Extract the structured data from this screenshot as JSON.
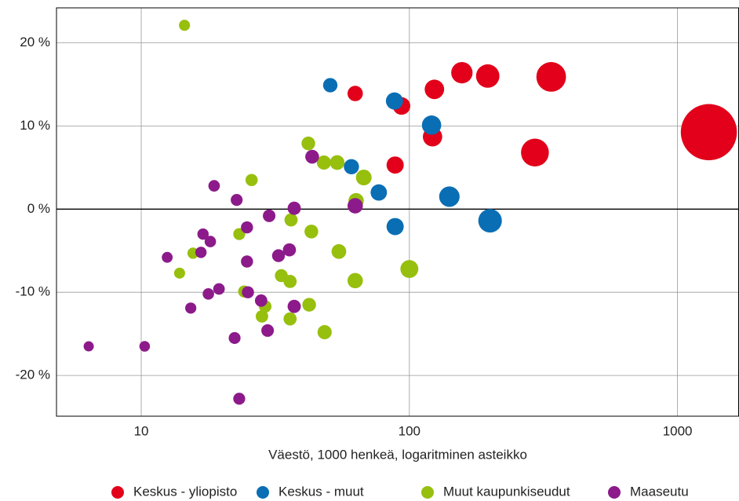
{
  "chart_data": {
    "type": "scatter",
    "x_label": "Väestö, 1000 henkeä, logaritminen asteikko",
    "xscale": "log",
    "grid": true,
    "legend": "bottom",
    "xlim": [
      4.83,
      1690
    ],
    "xticks": [
      10,
      100,
      1000
    ],
    "ylim": [
      -24.9,
      24.2
    ],
    "yticks": [
      {
        "value": -20,
        "label": "-20 %"
      },
      {
        "value": -10,
        "label": "-10 %"
      },
      {
        "value": 0,
        "label": "0 %"
      },
      {
        "value": 10,
        "label": "10 %"
      },
      {
        "value": 20,
        "label": "20 %"
      }
    ],
    "series": [
      {
        "name": "Keskus - yliopisto",
        "color": "#e2001a",
        "x": [
          1309,
          338,
          196,
          157,
          124,
          93.5,
          62.8,
          122,
          88.5,
          294
        ],
        "values": [
          9.25,
          15.9,
          16.0,
          16.4,
          14.4,
          12.4,
          13.9,
          8.7,
          5.3,
          6.8
        ]
      },
      {
        "name": "Keskus - muut",
        "color": "#0a6eb4",
        "x": [
          50.7,
          88,
          121,
          60.8,
          76.9,
          141,
          88.5,
          200
        ],
        "values": [
          14.9,
          13.0,
          10.1,
          5.1,
          2.0,
          1.5,
          -2.1,
          -1.4
        ]
      },
      {
        "name": "Muut kaupunkiseudut",
        "color": "#97bf0d",
        "x": [
          14.5,
          42,
          48,
          53.8,
          25.8,
          67.6,
          63.3,
          36.2,
          43.1,
          23.2,
          15.6,
          54.6,
          13.9,
          33.3,
          35.9,
          62.8,
          100,
          24.2,
          29,
          28.2,
          42.3,
          35.9,
          48.3
        ],
        "values": [
          22.1,
          7.9,
          5.6,
          5.6,
          3.5,
          3.8,
          1.0,
          -1.3,
          -2.7,
          -3.0,
          -5.3,
          -5.1,
          -7.7,
          -8.0,
          -8.7,
          -8.6,
          -7.2,
          -9.9,
          -11.7,
          -12.9,
          -11.5,
          -13.2,
          -14.8
        ]
      },
      {
        "name": "Maaseutu",
        "color": "#8c1a8a",
        "x": [
          43.4,
          18.7,
          22.7,
          37.2,
          62.8,
          30,
          24.8,
          17,
          18.1,
          16.7,
          12.5,
          24.8,
          32.5,
          35.7,
          19.5,
          17.8,
          25,
          28,
          37.2,
          15.3,
          29.6,
          22.3,
          6.37,
          10.3,
          23.2
        ],
        "values": [
          6.3,
          2.8,
          1.1,
          0.1,
          0.4,
          -0.8,
          -2.2,
          -3.0,
          -3.9,
          -5.2,
          -5.8,
          -6.3,
          -5.6,
          -4.9,
          -9.6,
          -10.2,
          -10.0,
          -11.0,
          -11.7,
          -11.9,
          -14.6,
          -15.5,
          -16.5,
          -16.5,
          -22.8
        ]
      }
    ]
  }
}
